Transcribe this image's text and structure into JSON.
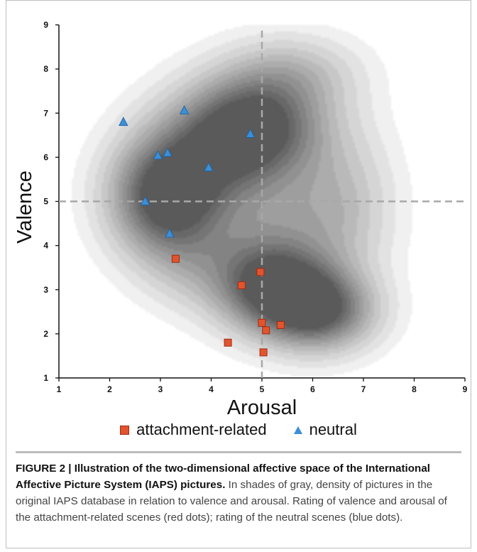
{
  "chart_data": {
    "type": "scatter",
    "xlabel": "Arousal",
    "ylabel": "Valence",
    "xlim": [
      1,
      9
    ],
    "ylim": [
      1,
      9
    ],
    "xticks": [
      "1",
      "2",
      "3",
      "4",
      "5",
      "6",
      "7",
      "8",
      "9"
    ],
    "yticks": [
      "1",
      "2",
      "3",
      "4",
      "5",
      "6",
      "7",
      "8",
      "9"
    ],
    "reference_lines": {
      "x": 5,
      "y": 5
    },
    "background": "density contours (shades of gray)",
    "density_peaks": [
      {
        "x": 3.0,
        "y": 5.0
      },
      {
        "x": 5.0,
        "y": 6.8
      },
      {
        "x": 5.2,
        "y": 3.1
      },
      {
        "x": 6.0,
        "y": 2.6
      }
    ],
    "series": [
      {
        "name": "attachment-related",
        "color": "#e2542e",
        "marker": "square",
        "points": [
          {
            "x": 3.3,
            "y": 3.7
          },
          {
            "x": 4.6,
            "y": 3.1
          },
          {
            "x": 4.97,
            "y": 3.4
          },
          {
            "x": 5.0,
            "y": 2.25
          },
          {
            "x": 5.08,
            "y": 2.08
          },
          {
            "x": 5.37,
            "y": 2.2
          },
          {
            "x": 4.33,
            "y": 1.8
          },
          {
            "x": 5.03,
            "y": 1.58
          }
        ]
      },
      {
        "name": "neutral",
        "color": "#3a8fd8",
        "marker": "triangle",
        "points": [
          {
            "x": 2.27,
            "y": 6.8
          },
          {
            "x": 3.47,
            "y": 7.06
          },
          {
            "x": 4.77,
            "y": 6.53
          },
          {
            "x": 2.95,
            "y": 6.04
          },
          {
            "x": 3.14,
            "y": 6.1
          },
          {
            "x": 3.95,
            "y": 5.77
          },
          {
            "x": 2.7,
            "y": 5.0
          },
          {
            "x": 3.18,
            "y": 4.27
          }
        ]
      }
    ]
  },
  "legend": {
    "items": [
      {
        "label": "attachment-related"
      },
      {
        "label": "neutral"
      }
    ]
  },
  "caption": {
    "bold_text": "FIGURE 2 | Illustration of the two-dimensional affective space of the International Affective Picture System (IAPS) pictures.",
    "body_text": " In shades of gray, density of pictures in the original IAPS database in relation to valence and arousal. Rating of valence and arousal of the attachment-related scenes (red dots); rating of the neutral scenes (blue dots)."
  }
}
